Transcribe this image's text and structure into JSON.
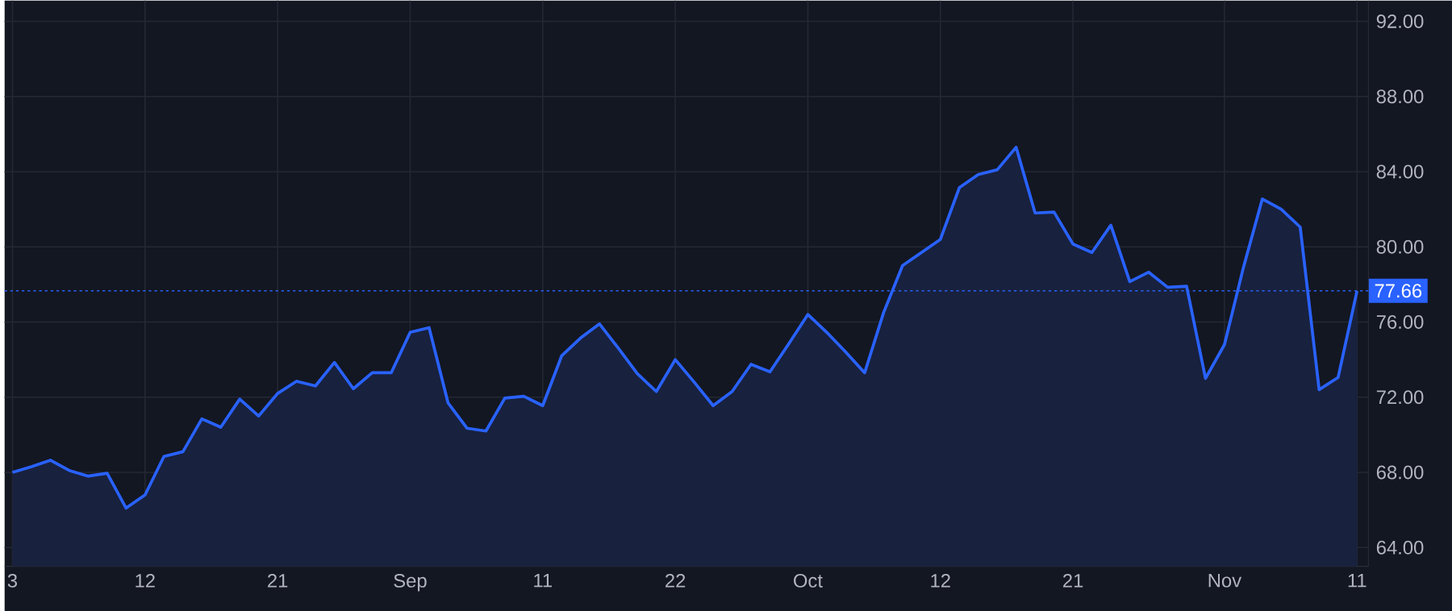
{
  "chart_data": {
    "type": "area",
    "categories": [
      "3",
      null,
      null,
      null,
      null,
      null,
      null,
      "12",
      null,
      null,
      null,
      null,
      null,
      null,
      "21",
      null,
      null,
      null,
      null,
      null,
      null,
      "Sep",
      null,
      null,
      null,
      null,
      null,
      null,
      "11",
      null,
      null,
      null,
      null,
      null,
      null,
      "22",
      null,
      null,
      null,
      null,
      null,
      null,
      "Oct",
      null,
      null,
      null,
      null,
      null,
      null,
      "12",
      null,
      null,
      null,
      null,
      null,
      null,
      "21",
      null,
      null,
      null,
      null,
      null,
      null,
      null,
      "Nov",
      null,
      null,
      null,
      null,
      null,
      null,
      "11"
    ],
    "series": [
      {
        "color": "#2962ff",
        "values": [
          68.0,
          68.3,
          68.65,
          68.1,
          67.8,
          67.95,
          66.1,
          66.8,
          68.85,
          69.1,
          70.85,
          70.4,
          71.9,
          71.0,
          72.2,
          72.85,
          72.6,
          73.85,
          72.45,
          73.3,
          73.3,
          75.45,
          75.7,
          71.7,
          70.35,
          70.2,
          71.95,
          72.05,
          71.55,
          74.2,
          75.15,
          75.9,
          74.6,
          73.25,
          72.3,
          74.0,
          72.8,
          71.55,
          72.3,
          73.75,
          73.35,
          74.85,
          76.4,
          75.45,
          74.4,
          73.3,
          76.5,
          79.0,
          79.7,
          80.4,
          83.15,
          83.85,
          84.1,
          85.3,
          81.8,
          81.85,
          80.15,
          79.7,
          81.15,
          78.15,
          78.65,
          77.85,
          77.9,
          73.0,
          74.8,
          78.9,
          82.55,
          82.0,
          81.05,
          72.4,
          73.05,
          77.66
        ]
      }
    ],
    "ylim": [
      63,
      93.1
    ],
    "yticks": [
      {
        "value": 64,
        "label": "64.00"
      },
      {
        "value": 68,
        "label": "68.00"
      },
      {
        "value": 72,
        "label": "72.00"
      },
      {
        "value": 76,
        "label": "76.00"
      },
      {
        "value": 80,
        "label": "80.00"
      },
      {
        "value": 84,
        "label": "84.00"
      },
      {
        "value": 88,
        "label": "88.00"
      },
      {
        "value": 92,
        "label": "92.00"
      }
    ],
    "grid": true,
    "ref_lines": [
      {
        "axis": "y",
        "value": 77.66,
        "label": "77.66",
        "color": "#2962ff",
        "line_style": "dotted"
      }
    ]
  }
}
